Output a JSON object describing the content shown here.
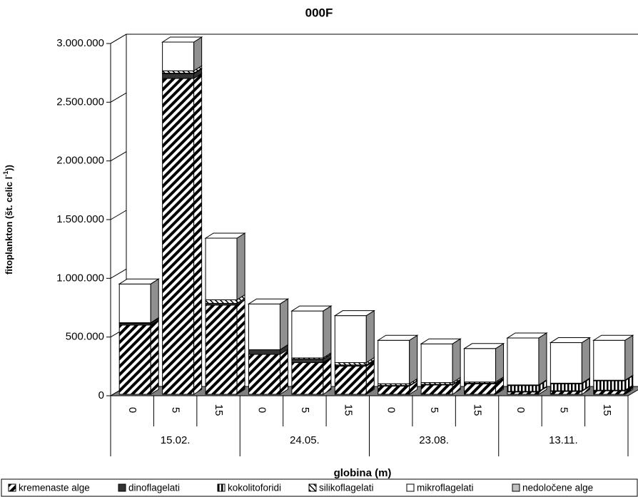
{
  "chart_data": {
    "type": "bar3d-stacked",
    "title": "000F",
    "x_label": "globina (m)",
    "y_label": {
      "main": "fitoplankton (št. celic l",
      "sup": "-1",
      "end": "))"
    },
    "categories": [
      "0",
      "5",
      "15",
      "0",
      "5",
      "15",
      "0",
      "5",
      "15",
      "0",
      "5",
      "15"
    ],
    "groups": [
      "15.02.",
      "24.05.",
      "23.08.",
      "13.11."
    ],
    "ylim": [
      0,
      3000000
    ],
    "yticks": [
      0,
      {
        "value": 500000,
        "label": "500.000"
      },
      {
        "value": 1000000,
        "label": "1.000.000"
      },
      {
        "value": 1500000,
        "label": "1.500.000"
      },
      {
        "value": 2000000,
        "label": "2.000.000"
      },
      {
        "value": 2500000,
        "label": "2.500.000"
      },
      {
        "value": 3000000,
        "label": "3.000.000"
      }
    ],
    "grid": false,
    "legend": "bottom",
    "series": [
      {
        "name": "kremenaste alge",
        "color": "#000000",
        "pattern": "diagonal",
        "values": [
          590000,
          2690000,
          760000,
          340000,
          270000,
          240000,
          70000,
          80000,
          90000,
          20000,
          25000,
          30000
        ]
      },
      {
        "name": "dinoflagelati",
        "color": "#333333",
        "pattern": "solid",
        "values": [
          15000,
          40000,
          15000,
          40000,
          30000,
          10000,
          5000,
          5000,
          5000,
          5000,
          5000,
          5000
        ]
      },
      {
        "name": "kokolitoforidi",
        "color": "#000000",
        "pattern": "vertical",
        "values": [
          0,
          5000,
          0,
          0,
          0,
          0,
          0,
          0,
          0,
          50000,
          60000,
          80000
        ]
      },
      {
        "name": "silikoflagelati",
        "color": "#000000",
        "pattern": "diagonal-light",
        "values": [
          5000,
          20000,
          30000,
          0,
          10000,
          20000,
          15000,
          15000,
          10000,
          5000,
          5000,
          5000
        ]
      },
      {
        "name": "mikroflagelati",
        "color": "#ffffff",
        "pattern": "none",
        "values": [
          330000,
          245000,
          525000,
          390000,
          400000,
          400000,
          370000,
          330000,
          285000,
          400000,
          345000,
          340000
        ]
      },
      {
        "name": "nedoločene alge",
        "color": "#c0c0c0",
        "pattern": "solid",
        "values": [
          0,
          0,
          0,
          0,
          0,
          0,
          0,
          0,
          0,
          0,
          0,
          0
        ]
      }
    ]
  }
}
